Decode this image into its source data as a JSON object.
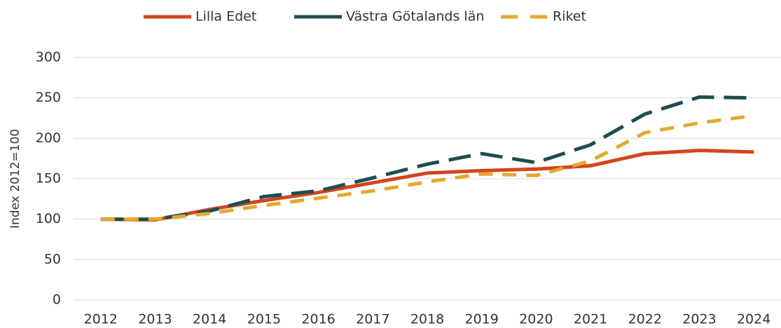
{
  "chart_data": {
    "type": "line",
    "y_label": "Index 2012=100",
    "categories": [
      "2012",
      "2013",
      "2014",
      "2015",
      "2016",
      "2017",
      "2018",
      "2019",
      "2020",
      "2021",
      "2022",
      "2023",
      "2024"
    ],
    "series": [
      {
        "name": "Lilla Edet",
        "color": "#d4441c",
        "values": [
          100,
          99,
          112,
          123,
          133,
          145,
          157,
          160,
          162,
          166,
          181,
          185,
          183
        ]
      },
      {
        "name": "Västra Götalands län",
        "color": "#1e4d4f",
        "values": [
          100,
          100,
          110,
          128,
          135,
          151,
          168,
          181,
          170,
          192,
          230,
          251,
          250
        ]
      },
      {
        "name": "Riket",
        "color": "#e3a92b",
        "values": [
          100,
          100,
          107,
          117,
          126,
          135,
          146,
          156,
          154,
          172,
          207,
          219,
          228
        ]
      }
    ],
    "ylim": [
      0,
      300
    ],
    "yticks": [
      0,
      50,
      100,
      150,
      200,
      250,
      300
    ],
    "grid": true,
    "legend": "top"
  }
}
